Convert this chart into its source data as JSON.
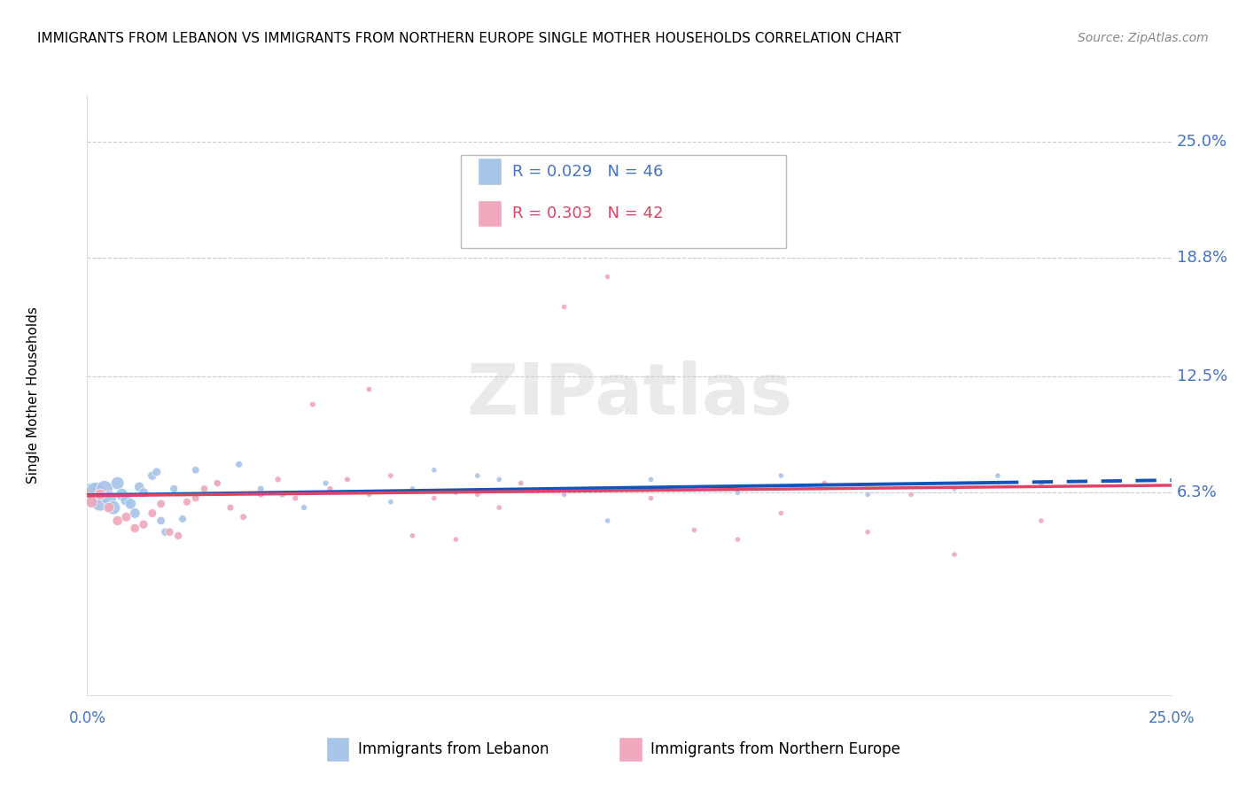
{
  "title": "IMMIGRANTS FROM LEBANON VS IMMIGRANTS FROM NORTHERN EUROPE SINGLE MOTHER HOUSEHOLDS CORRELATION CHART",
  "source": "Source: ZipAtlas.com",
  "ylabel": "Single Mother Households",
  "xlim": [
    0.0,
    0.25
  ],
  "ylim": [
    -0.045,
    0.275
  ],
  "ytick_vals": [
    0.063,
    0.125,
    0.188,
    0.25
  ],
  "ytick_labels": [
    "6.3%",
    "12.5%",
    "18.8%",
    "25.0%"
  ],
  "xtick_labels": [
    "0.0%",
    "25.0%"
  ],
  "R_blue": 0.029,
  "N_blue": 46,
  "R_pink": 0.303,
  "N_pink": 42,
  "blue_color": "#a8c4e8",
  "pink_color": "#f0a8bc",
  "blue_line_color": "#1155bb",
  "pink_line_color": "#dd4466",
  "legend_blue_label": "Immigrants from Lebanon",
  "legend_pink_label": "Immigrants from Northern Europe",
  "scatter_blue_x": [
    0.001,
    0.002,
    0.003,
    0.004,
    0.005,
    0.006,
    0.007,
    0.008,
    0.009,
    0.01,
    0.011,
    0.012,
    0.013,
    0.015,
    0.016,
    0.017,
    0.018,
    0.02,
    0.022,
    0.025,
    0.03,
    0.035,
    0.04,
    0.045,
    0.05,
    0.055,
    0.06,
    0.065,
    0.07,
    0.075,
    0.08,
    0.085,
    0.09,
    0.095,
    0.1,
    0.11,
    0.12,
    0.13,
    0.14,
    0.15,
    0.16,
    0.17,
    0.18,
    0.2,
    0.21,
    0.22
  ],
  "scatter_blue_y": [
    0.062,
    0.063,
    0.058,
    0.065,
    0.06,
    0.055,
    0.068,
    0.062,
    0.059,
    0.057,
    0.052,
    0.066,
    0.063,
    0.072,
    0.074,
    0.048,
    0.042,
    0.065,
    0.049,
    0.075,
    0.068,
    0.078,
    0.065,
    0.062,
    0.055,
    0.068,
    0.07,
    0.062,
    0.058,
    0.065,
    0.075,
    0.063,
    0.072,
    0.07,
    0.068,
    0.062,
    0.048,
    0.07,
    0.065,
    0.063,
    0.072,
    0.068,
    0.062,
    0.065,
    0.072,
    0.068
  ],
  "scatter_blue_s": [
    350,
    280,
    220,
    180,
    150,
    130,
    110,
    100,
    90,
    80,
    70,
    65,
    60,
    55,
    50,
    48,
    45,
    42,
    40,
    38,
    35,
    32,
    30,
    28,
    25,
    24,
    22,
    21,
    20,
    20,
    20,
    20,
    20,
    20,
    20,
    20,
    20,
    20,
    20,
    20,
    20,
    20,
    20,
    20,
    20,
    20
  ],
  "scatter_pink_x": [
    0.001,
    0.003,
    0.005,
    0.007,
    0.009,
    0.011,
    0.013,
    0.015,
    0.017,
    0.019,
    0.021,
    0.023,
    0.025,
    0.027,
    0.03,
    0.033,
    0.036,
    0.04,
    0.044,
    0.048,
    0.052,
    0.056,
    0.06,
    0.065,
    0.07,
    0.075,
    0.08,
    0.085,
    0.09,
    0.095,
    0.1,
    0.11,
    0.12,
    0.13,
    0.14,
    0.15,
    0.16,
    0.17,
    0.18,
    0.19,
    0.2,
    0.22
  ],
  "scatter_pink_y": [
    0.058,
    0.062,
    0.055,
    0.048,
    0.05,
    0.044,
    0.046,
    0.052,
    0.057,
    0.042,
    0.04,
    0.058,
    0.06,
    0.065,
    0.068,
    0.055,
    0.05,
    0.062,
    0.07,
    0.06,
    0.11,
    0.065,
    0.07,
    0.118,
    0.072,
    0.04,
    0.06,
    0.038,
    0.062,
    0.055,
    0.068,
    0.162,
    0.178,
    0.06,
    0.043,
    0.038,
    0.052,
    0.068,
    0.042,
    0.062,
    0.03,
    0.048
  ],
  "scatter_pink_s": [
    90,
    80,
    72,
    65,
    60,
    55,
    52,
    50,
    48,
    45,
    42,
    40,
    38,
    36,
    34,
    32,
    30,
    28,
    26,
    25,
    24,
    23,
    22,
    22,
    21,
    21,
    20,
    20,
    20,
    20,
    20,
    20,
    20,
    20,
    20,
    20,
    20,
    20,
    20,
    20,
    20,
    20
  ]
}
